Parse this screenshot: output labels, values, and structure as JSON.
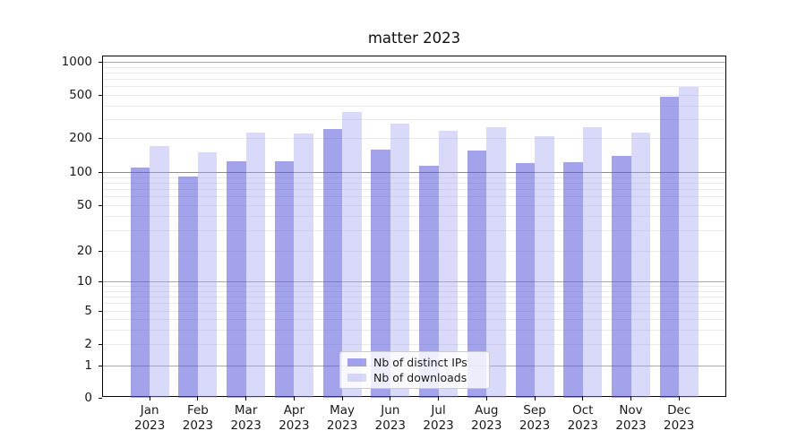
{
  "title": "matter 2023",
  "chart_data": {
    "type": "bar",
    "title": "matter 2023",
    "categories": [
      "Jan",
      "Feb",
      "Mar",
      "Apr",
      "May",
      "Jun",
      "Jul",
      "Aug",
      "Sep",
      "Oct",
      "Nov",
      "Dec"
    ],
    "category_year": "2023",
    "series": [
      {
        "name": "Nb of distinct IPs",
        "color": "rgba(88,88,220,0.55)",
        "values": [
          110,
          91,
          125,
          125,
          240,
          157,
          114,
          154,
          121,
          123,
          140,
          480
        ]
      },
      {
        "name": "Nb of downloads",
        "color": "rgba(160,160,240,0.4)",
        "values": [
          170,
          150,
          226,
          219,
          345,
          270,
          231,
          251,
          207,
          250,
          224,
          590
        ]
      }
    ],
    "yscale": "symlog",
    "yticks": [
      0,
      1,
      2,
      5,
      10,
      20,
      50,
      100,
      200,
      500,
      1000
    ],
    "ylim": [
      0,
      1150
    ],
    "grid": "horizontal major+minor",
    "legend_position": "lower center"
  }
}
